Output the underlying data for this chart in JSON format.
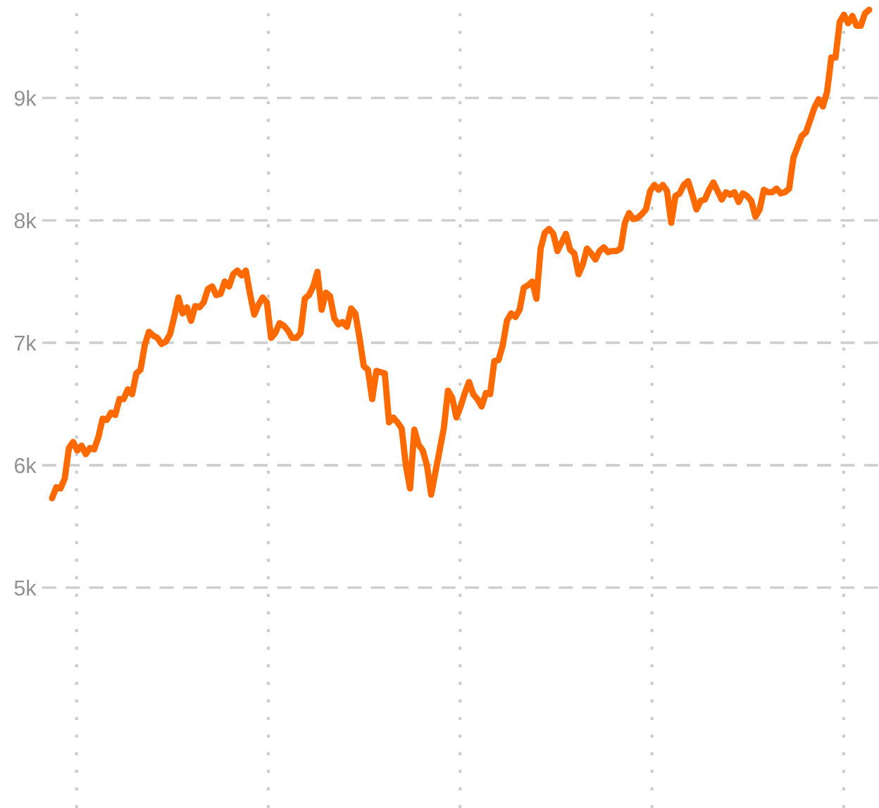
{
  "chart_data": {
    "type": "line",
    "categories": [
      null,
      null,
      null,
      null,
      null,
      null,
      null,
      null,
      null,
      null,
      null,
      null,
      null,
      null,
      null,
      null,
      null,
      null,
      null,
      null,
      null,
      null,
      null,
      null,
      null,
      null,
      null,
      null,
      null,
      null,
      null,
      null,
      null,
      null,
      null,
      null,
      null,
      null,
      null,
      null,
      null,
      null,
      null,
      null,
      null,
      null,
      null,
      null,
      null,
      null,
      null,
      null,
      null,
      null,
      null,
      null,
      null,
      null,
      null,
      null,
      null,
      null,
      null,
      null,
      null,
      null,
      null,
      null,
      null,
      null,
      null,
      null,
      null,
      null,
      null,
      null,
      null,
      null,
      null,
      null,
      null,
      null,
      null,
      null,
      null,
      null,
      null,
      null,
      null,
      null,
      null,
      null,
      null,
      null,
      null,
      null,
      null,
      null,
      null,
      null,
      null,
      null,
      null,
      null,
      null,
      null,
      null,
      null,
      null,
      null,
      null,
      null,
      null,
      null,
      null,
      null,
      null,
      null,
      null,
      null,
      null,
      null,
      null,
      null,
      null,
      null,
      null,
      null,
      null,
      null,
      null,
      null,
      null,
      null,
      null,
      null,
      null,
      null,
      null,
      null,
      null,
      null,
      null,
      null,
      null,
      null,
      null,
      null,
      null,
      null,
      null,
      null,
      null,
      null,
      null,
      null,
      null,
      null,
      null,
      null,
      null,
      null,
      null,
      null,
      null,
      null,
      null,
      null,
      null,
      null,
      null,
      null,
      null,
      null,
      null,
      null,
      null,
      null,
      null,
      null,
      null,
      null,
      null,
      null,
      null,
      null,
      null,
      null,
      null,
      null,
      null,
      null,
      null,
      null,
      null
    ],
    "series": [
      {
        "color": "#ff6a00",
        "values": [
          5730,
          5820,
          5810,
          5890,
          6140,
          6190,
          6120,
          6160,
          6090,
          6140,
          6130,
          6230,
          6380,
          6370,
          6430,
          6410,
          6540,
          6540,
          6620,
          6580,
          6750,
          6780,
          6980,
          7090,
          7060,
          7040,
          6990,
          7010,
          7070,
          7210,
          7370,
          7240,
          7290,
          7180,
          7300,
          7290,
          7330,
          7440,
          7460,
          7390,
          7400,
          7500,
          7460,
          7560,
          7590,
          7550,
          7590,
          7400,
          7230,
          7310,
          7370,
          7330,
          7040,
          7080,
          7160,
          7140,
          7100,
          7040,
          7040,
          7080,
          7360,
          7390,
          7460,
          7580,
          7270,
          7410,
          7380,
          7200,
          7150,
          7170,
          7130,
          7280,
          7240,
          7040,
          6810,
          6780,
          6540,
          6770,
          6760,
          6750,
          6350,
          6390,
          6350,
          6300,
          6000,
          5810,
          6290,
          6170,
          6120,
          6000,
          5760,
          5940,
          6120,
          6300,
          6610,
          6550,
          6390,
          6480,
          6590,
          6680,
          6580,
          6540,
          6480,
          6590,
          6580,
          6850,
          6860,
          6980,
          7180,
          7240,
          7210,
          7270,
          7450,
          7470,
          7500,
          7360,
          7770,
          7900,
          7930,
          7890,
          7750,
          7820,
          7890,
          7760,
          7730,
          7560,
          7640,
          7770,
          7730,
          7680,
          7750,
          7780,
          7740,
          7750,
          7750,
          7770,
          7980,
          8060,
          8010,
          8020,
          8050,
          8090,
          8240,
          8290,
          8250,
          8290,
          8240,
          7980,
          8200,
          8220,
          8290,
          8320,
          8210,
          8090,
          8160,
          8170,
          8250,
          8310,
          8240,
          8170,
          8230,
          8210,
          8230,
          8150,
          8220,
          8200,
          8160,
          8030,
          8090,
          8250,
          8230,
          8230,
          8260,
          8220,
          8230,
          8260,
          8510,
          8600,
          8690,
          8720,
          8820,
          8920,
          8990,
          8930,
          9050,
          9330,
          9330,
          9620,
          9680,
          9610,
          9670,
          9590,
          9590,
          9690,
          9720
        ]
      }
    ],
    "ylim": [
      3200,
      9800
    ],
    "yticks": [
      {
        "value": 5000,
        "label": "5k"
      },
      {
        "value": 6000,
        "label": "6k"
      },
      {
        "value": 7000,
        "label": "7k"
      },
      {
        "value": 8000,
        "label": "8k"
      },
      {
        "value": 9000,
        "label": "9k"
      }
    ],
    "tick_labels": "y",
    "grid": true,
    "line_style": "solid"
  }
}
